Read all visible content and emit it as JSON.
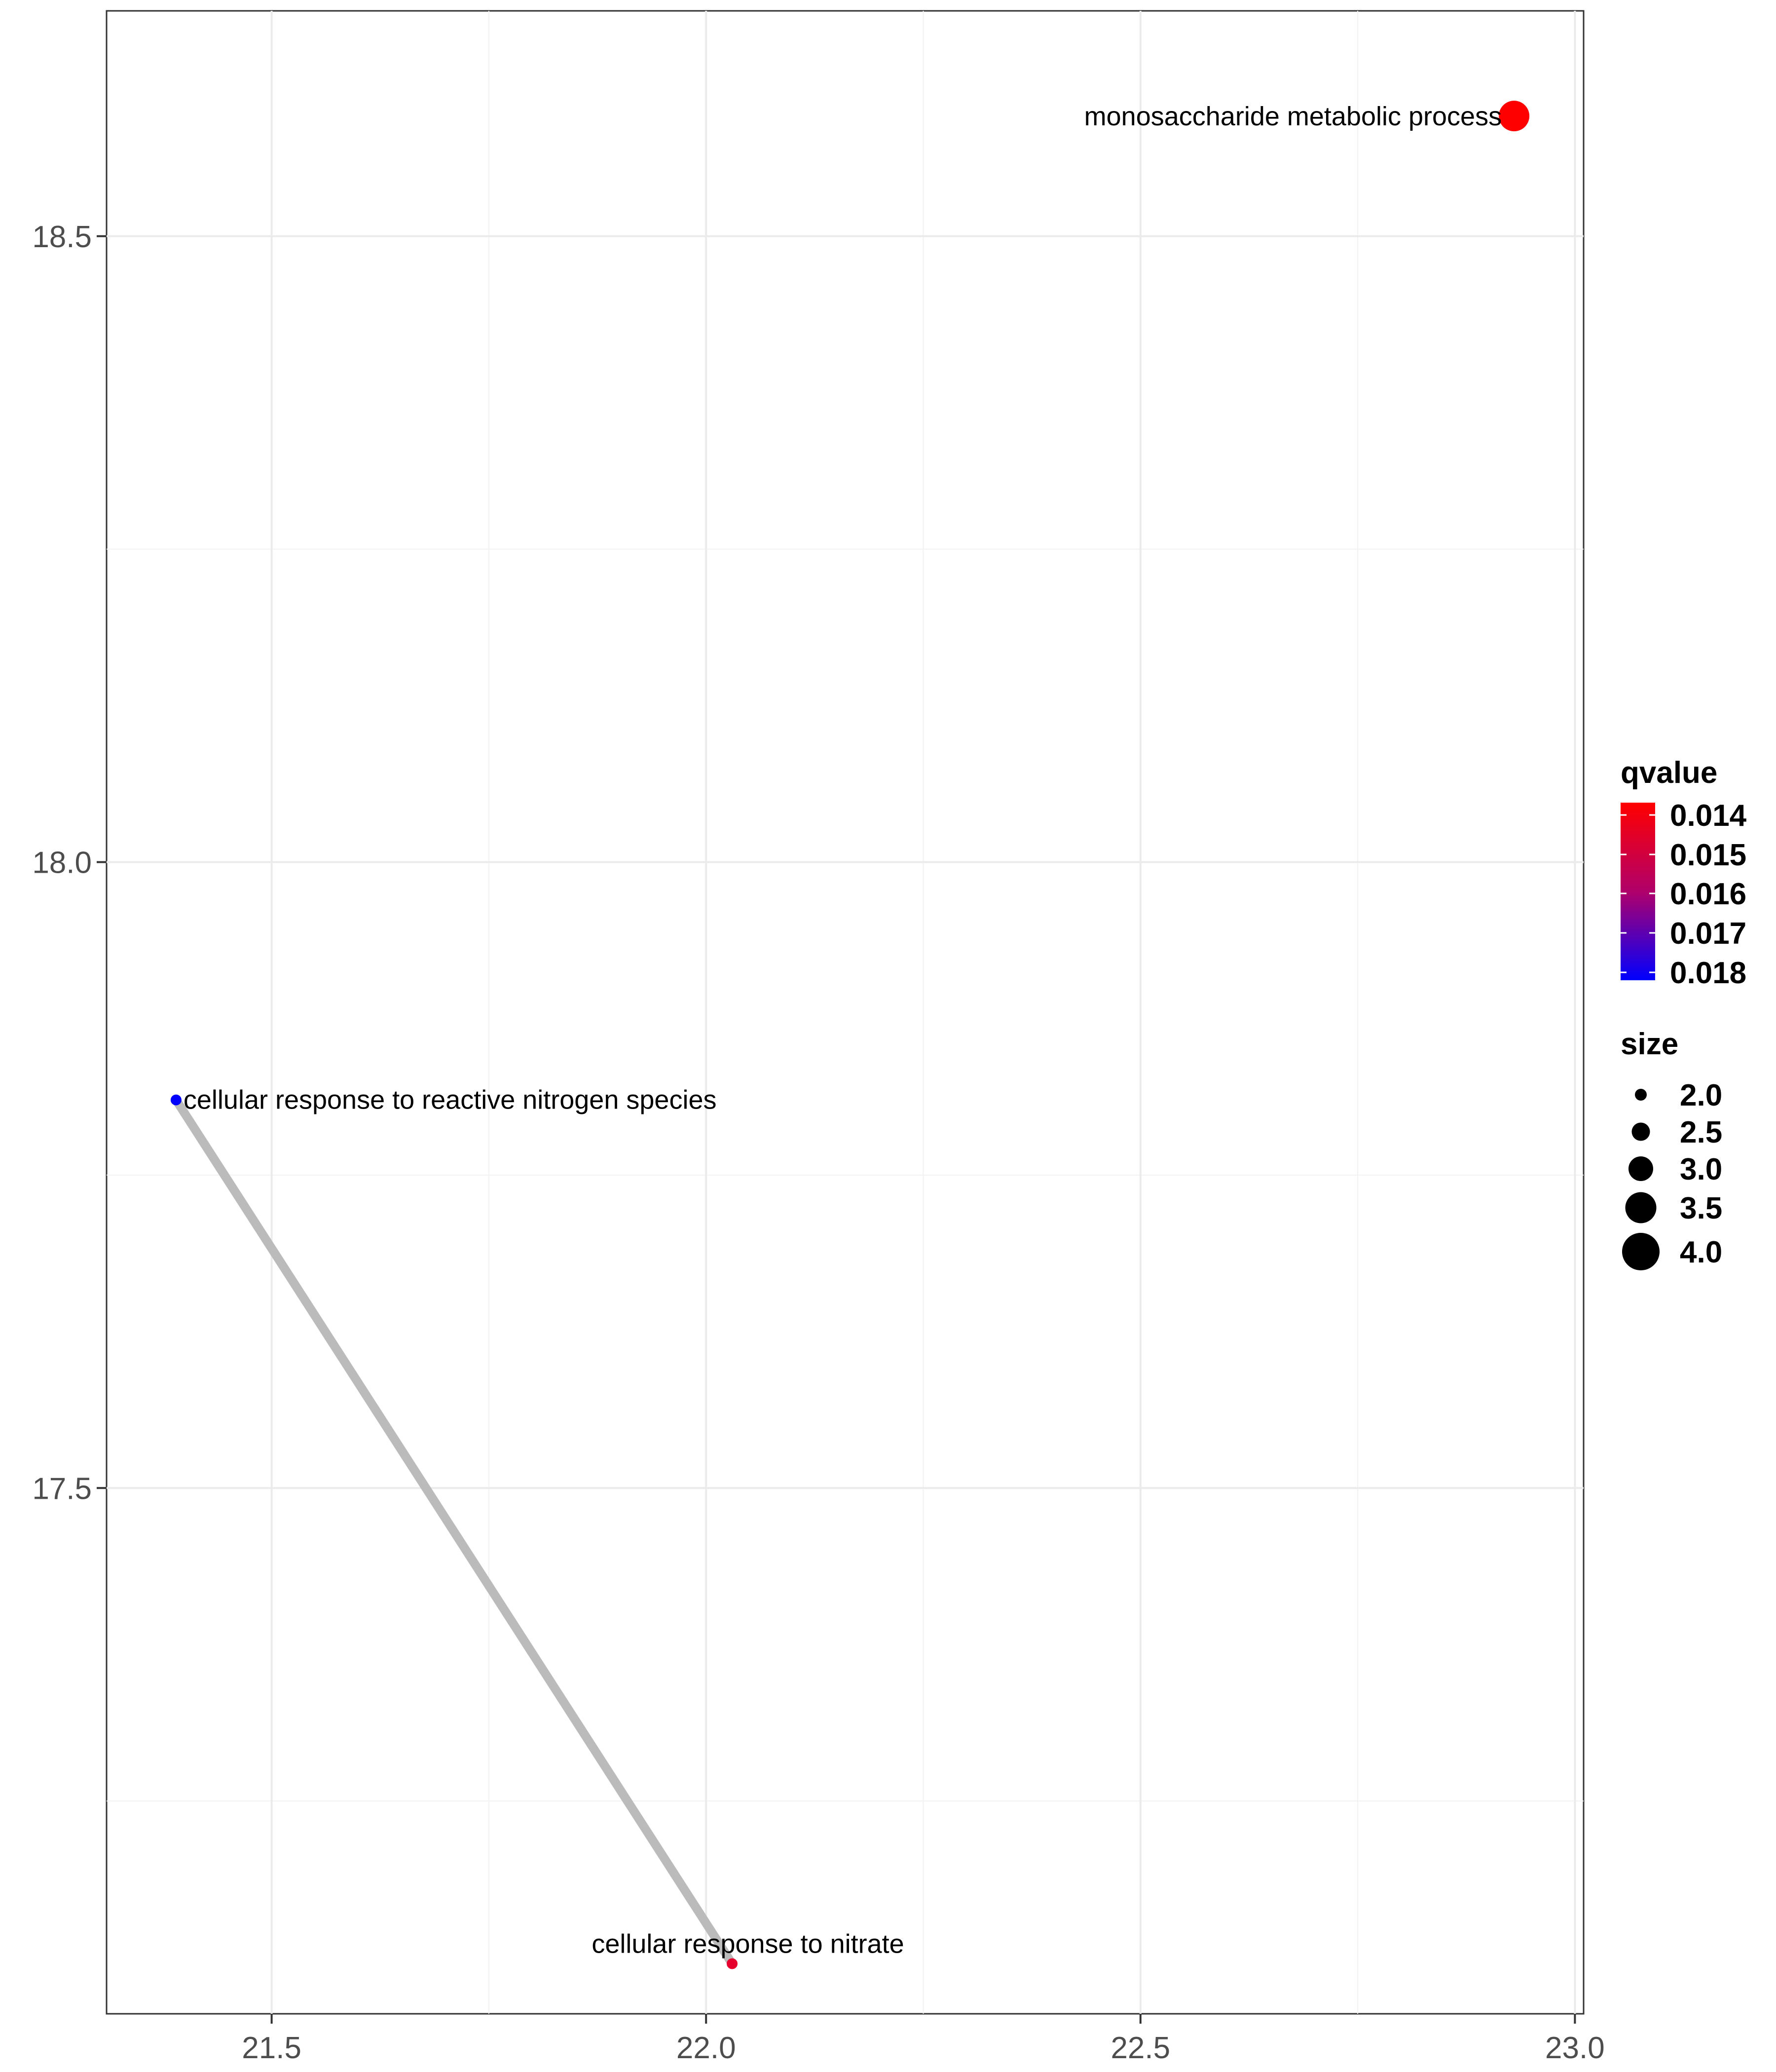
{
  "chart_data": {
    "type": "scatter",
    "title": "",
    "xlabel": "",
    "ylabel": "",
    "xlim": [
      21.31,
      23.01
    ],
    "ylim": [
      17.08,
      18.68
    ],
    "x_ticks": [
      21.5,
      22.0,
      22.5,
      23.0
    ],
    "x_tick_labels": [
      "21.5",
      "22.0",
      "22.5",
      "23.0"
    ],
    "y_ticks": [
      17.5,
      18.0,
      18.5
    ],
    "y_tick_labels": [
      "17.5",
      "18.0",
      "18.5"
    ],
    "grid": true,
    "points": [
      {
        "label": "monosaccharide metabolic process",
        "x": 22.93,
        "y": 18.596,
        "qvalue": 0.0138,
        "size": 4.0,
        "color": "#ff0000"
      },
      {
        "label": "cellular response to reactive nitrogen species",
        "x": 21.39,
        "y": 17.81,
        "qvalue": 0.0182,
        "size": 2.0,
        "color": "#0000ff"
      },
      {
        "label": "cellular response to nitrate",
        "x": 22.03,
        "y": 17.12,
        "qvalue": 0.0146,
        "size": 2.0,
        "color": "#e6002d"
      }
    ],
    "edges": [
      {
        "from": 1,
        "to": 2,
        "color": "#bbbbbb"
      }
    ],
    "legend": {
      "placement": "right",
      "color": {
        "title": "qvalue",
        "labels": [
          "0.014",
          "0.015",
          "0.016",
          "0.017",
          "0.018"
        ],
        "low_color": "#ff0000",
        "high_color": "#0000ff"
      },
      "size": {
        "title": "size",
        "labels": [
          "2.0",
          "2.5",
          "3.0",
          "3.5",
          "4.0"
        ],
        "values": [
          2.0,
          2.5,
          3.0,
          3.5,
          4.0
        ]
      }
    }
  }
}
